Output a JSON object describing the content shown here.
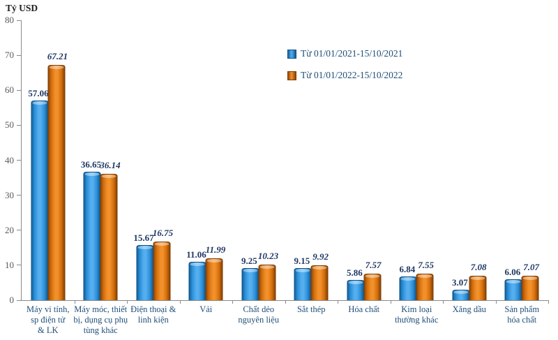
{
  "chart_data": {
    "type": "bar",
    "title": "",
    "ylabel": "Tỷ USD",
    "xlabel": "",
    "ylim": [
      0,
      80
    ],
    "ytick_step": 10,
    "grid": false,
    "legend_position": "inside-top-right",
    "value_labels": true,
    "categories": [
      "Máy vi tính,\nsp điện tử\n& LK",
      "Máy móc, thiết\nbị, dụng cụ phụ\ntùng khác",
      "Điện thoại &\nlinh kiện",
      "Vải",
      "Chất dẻo\nnguyên liệu",
      "Sắt thép",
      "Hóa chất",
      "Kim loại\nthường khác",
      "Xăng dầu",
      "Sản phẩm\nhóa chất"
    ],
    "series": [
      {
        "name": "Từ 01/01/2021-15/10/2021",
        "color": "#2e93de",
        "values": [
          57.06,
          36.65,
          15.67,
          11.06,
          9.25,
          9.15,
          5.86,
          6.84,
          3.07,
          6.06
        ]
      },
      {
        "name": "Từ 01/01/2022-15/10/2022",
        "color": "#e2790f",
        "values": [
          67.21,
          36.14,
          16.75,
          11.99,
          10.23,
          9.92,
          7.57,
          7.55,
          7.08,
          7.07
        ]
      }
    ],
    "colors": {
      "bar_2021": "#2e93de",
      "bar_2022": "#e2790f",
      "axis": "#8a8a8a",
      "tick_label": "#5a5a5a",
      "category_label": "#1f4e79",
      "value_label": "#1f3864"
    }
  }
}
